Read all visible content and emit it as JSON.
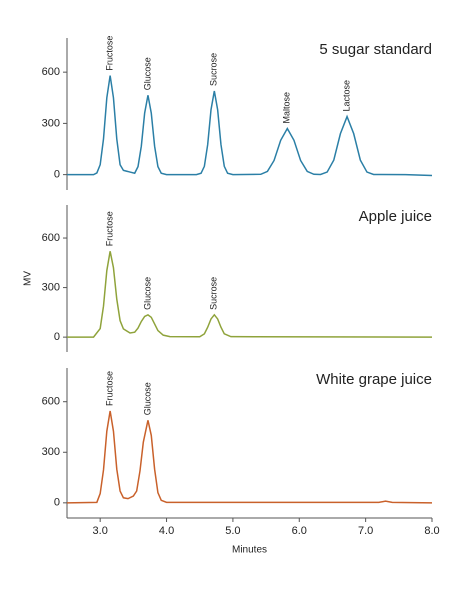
{
  "chart_data": [
    {
      "type": "line",
      "title": "5 sugar standard",
      "xlim": [
        2.5,
        8.0
      ],
      "ylim": [
        -90,
        800
      ],
      "yticks": [
        0,
        300,
        600
      ],
      "annotations": [
        "Fructose",
        "Glucose",
        "Sucrose",
        "Maltose",
        "Lactose"
      ],
      "x": [
        2.5,
        2.9,
        2.95,
        3.0,
        3.05,
        3.1,
        3.15,
        3.2,
        3.25,
        3.3,
        3.35,
        3.45,
        3.52,
        3.57,
        3.62,
        3.67,
        3.72,
        3.77,
        3.82,
        3.87,
        3.92,
        4.0,
        4.45,
        4.52,
        4.57,
        4.62,
        4.67,
        4.72,
        4.77,
        4.82,
        4.87,
        4.92,
        5.0,
        5.42,
        5.52,
        5.62,
        5.72,
        5.82,
        5.92,
        6.02,
        6.12,
        6.22,
        6.32,
        6.42,
        6.52,
        6.62,
        6.72,
        6.82,
        6.92,
        7.02,
        7.12,
        7.6,
        8.0
      ],
      "series": [
        {
          "color": "#2b7fa6",
          "values": [
            0,
            0,
            10,
            58,
            209,
            450,
            580,
            450,
            209,
            58,
            25,
            15,
            8,
            47,
            167,
            360,
            465,
            360,
            167,
            47,
            8,
            0,
            0,
            8,
            49,
            176,
            380,
            490,
            380,
            176,
            49,
            8,
            0,
            2,
            19,
            83,
            201,
            270,
            201,
            83,
            19,
            2,
            1,
            15,
            85,
            240,
            340,
            240,
            85,
            15,
            1,
            0,
            -5
          ]
        }
      ]
    },
    {
      "type": "line",
      "title": "Apple juice",
      "ylabel": "MV",
      "xlim": [
        2.5,
        8.0
      ],
      "ylim": [
        -90,
        800
      ],
      "yticks": [
        0,
        300,
        600
      ],
      "annotations": [
        "Fructose",
        "Glucose",
        "Sucrose"
      ],
      "x": [
        2.5,
        2.9,
        3.0,
        3.05,
        3.1,
        3.15,
        3.2,
        3.25,
        3.3,
        3.35,
        3.45,
        3.52,
        3.57,
        3.62,
        3.67,
        3.72,
        3.77,
        3.82,
        3.87,
        3.95,
        4.05,
        4.5,
        4.57,
        4.62,
        4.67,
        4.72,
        4.77,
        4.82,
        4.87,
        4.97,
        8.0
      ],
      "series": [
        {
          "color": "#8fa33b",
          "values": [
            0,
            0,
            52,
            188,
            403,
            520,
            420,
            230,
            100,
            50,
            25,
            30,
            55,
            95,
            125,
            135,
            120,
            80,
            40,
            12,
            3,
            2,
            20,
            60,
            110,
            135,
            110,
            60,
            20,
            3,
            0
          ]
        }
      ]
    },
    {
      "type": "line",
      "title": "White grape juice",
      "xlabel": "Minutes",
      "xlim": [
        2.5,
        8.0
      ],
      "ylim": [
        -90,
        800
      ],
      "yticks": [
        0,
        300,
        600
      ],
      "xticks": [
        {
          "value": 3,
          "label": "3.0"
        },
        {
          "value": 4,
          "label": "4.0"
        },
        {
          "value": 5,
          "label": "5.0"
        },
        {
          "value": 6,
          "label": "6.0"
        },
        {
          "value": 7,
          "label": "7.0"
        },
        {
          "value": 8,
          "label": "8.0"
        }
      ],
      "annotations": [
        "Fructose",
        "Glucose"
      ],
      "x": [
        2.5,
        2.95,
        3.0,
        3.05,
        3.1,
        3.15,
        3.2,
        3.25,
        3.3,
        3.35,
        3.42,
        3.5,
        3.55,
        3.6,
        3.65,
        3.72,
        3.77,
        3.82,
        3.87,
        3.92,
        4.0,
        7.2,
        7.3,
        7.4,
        8.0
      ],
      "series": [
        {
          "color": "#c9612b",
          "values": [
            0,
            3,
            55,
            195,
            425,
            545,
            425,
            200,
            70,
            30,
            25,
            40,
            70,
            190,
            360,
            490,
            400,
            200,
            60,
            15,
            3,
            3,
            10,
            3,
            0
          ]
        }
      ]
    }
  ]
}
